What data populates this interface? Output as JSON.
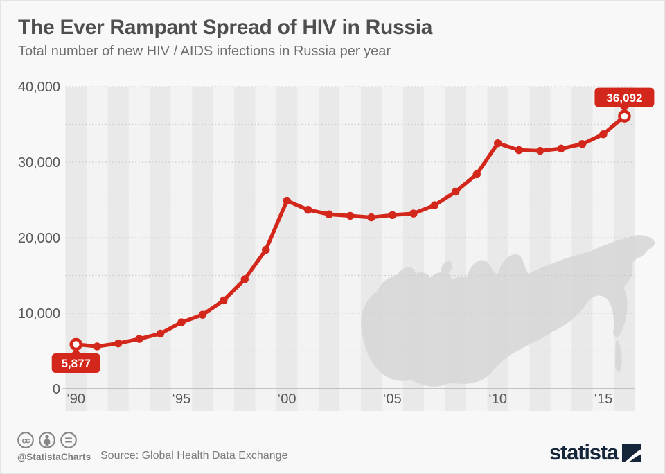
{
  "header": {
    "title": "The Ever Rampant Spread of HIV in Russia",
    "subtitle": "Total number of new HIV / AIDS infections in Russia per year"
  },
  "colors": {
    "line": "#d4271c",
    "callout": "#d4271c",
    "stripe_dark": "#e9e9e9",
    "stripe_light": "#f3f3f3",
    "grid": "#c9c9c9",
    "axis": "#b3b3b3",
    "map": "#d7d7d7",
    "tick_text": "#575757",
    "background": "#f8f8f8",
    "brand_navy": "#15253a",
    "footer_gray": "#7c7c7c"
  },
  "chart_data": {
    "type": "line",
    "title": "The Ever Rampant Spread of HIV in Russia",
    "subtitle": "Total number of new HIV / AIDS infections in Russia per year",
    "xlabel": "",
    "ylabel": "",
    "ylim": [
      0,
      40000
    ],
    "grid": "horizontal dotted",
    "grid_step": 5000,
    "legend": "none",
    "x": [
      1990,
      1991,
      1992,
      1993,
      1994,
      1995,
      1996,
      1997,
      1998,
      1999,
      2000,
      2001,
      2002,
      2003,
      2004,
      2005,
      2006,
      2007,
      2008,
      2009,
      2010,
      2011,
      2012,
      2013,
      2014,
      2015,
      2016
    ],
    "values": [
      5877,
      5600,
      6000,
      6600,
      7300,
      8800,
      9800,
      11700,
      14500,
      18400,
      24900,
      23700,
      23100,
      22900,
      22700,
      23000,
      23200,
      24300,
      26100,
      28400,
      32500,
      31600,
      31500,
      31800,
      32400,
      33700,
      36092
    ],
    "y_ticks": [
      {
        "value": 0,
        "label": "0"
      },
      {
        "value": 10000,
        "label": "10,000"
      },
      {
        "value": 20000,
        "label": "20,000"
      },
      {
        "value": 30000,
        "label": "30,000"
      },
      {
        "value": 40000,
        "label": "40,000"
      }
    ],
    "x_ticks": [
      {
        "value": 1990,
        "label": "‘90"
      },
      {
        "value": 1995,
        "label": "‘95"
      },
      {
        "value": 2000,
        "label": "‘00"
      },
      {
        "value": 2005,
        "label": "‘05"
      },
      {
        "value": 2010,
        "label": "‘10"
      },
      {
        "value": 2015,
        "label": "‘15"
      }
    ],
    "annotations": [
      {
        "year": 1990,
        "label": "5,877",
        "placement": "below"
      },
      {
        "year": 2016,
        "label": "36,092",
        "placement": "above"
      }
    ]
  },
  "footer": {
    "handle": "@StatistaCharts",
    "source": "Source: Global Health Data Exchange",
    "brand": "statista",
    "license_icons": [
      "cc-icon",
      "attribution-icon",
      "no-derivatives-icon"
    ]
  }
}
